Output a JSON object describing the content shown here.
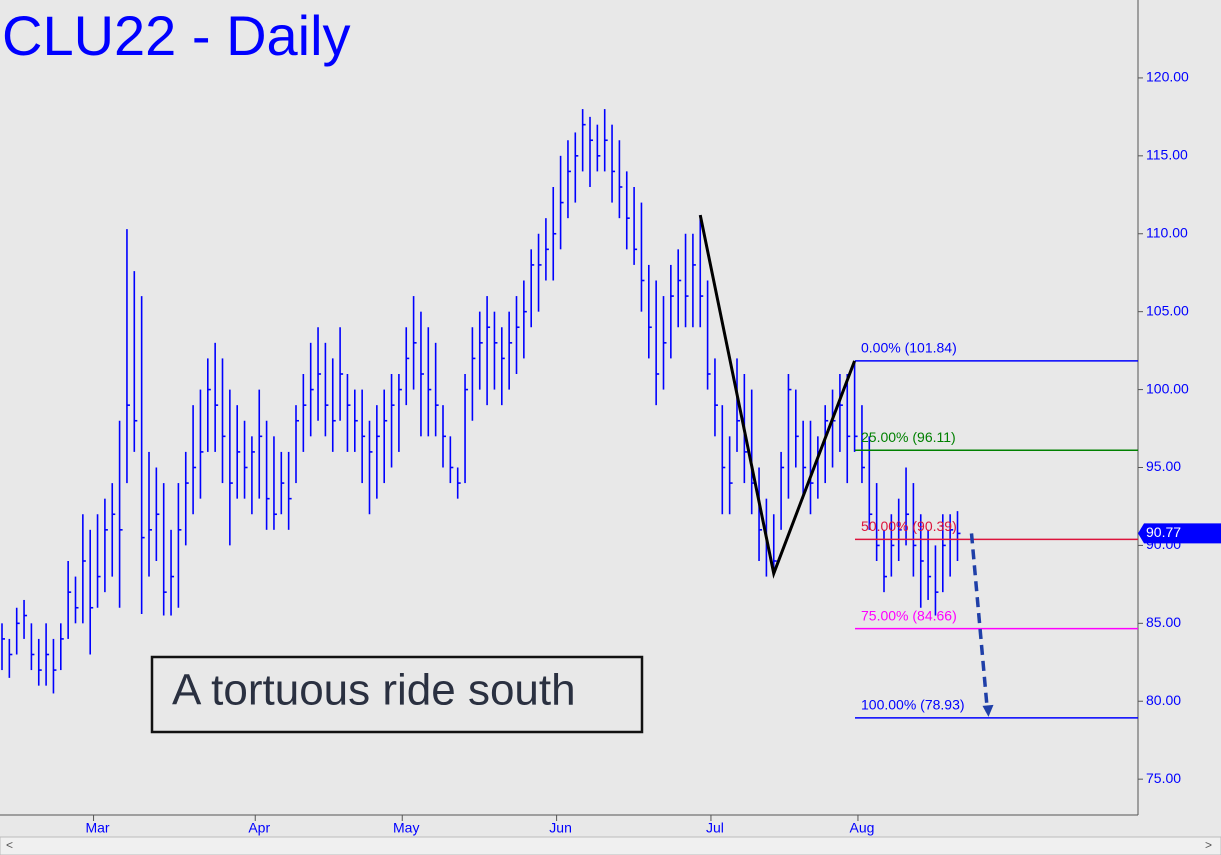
{
  "chart_data": {
    "type": "ohlc",
    "title": "CLU22 - Daily",
    "annotation": "A tortuous ride south",
    "color": "#0000ff",
    "categories": [
      null,
      null,
      null,
      null,
      null,
      null,
      null,
      null,
      null,
      null,
      null,
      null,
      null,
      "Mar",
      null,
      null,
      null,
      null,
      null,
      null,
      null,
      null,
      null,
      null,
      null,
      null,
      null,
      null,
      null,
      null,
      null,
      null,
      null,
      null,
      null,
      "Apr",
      null,
      null,
      null,
      null,
      null,
      null,
      null,
      null,
      null,
      null,
      null,
      null,
      null,
      null,
      null,
      null,
      null,
      null,
      null,
      "May",
      null,
      null,
      null,
      null,
      null,
      null,
      null,
      null,
      null,
      null,
      null,
      null,
      null,
      null,
      null,
      null,
      null,
      null,
      null,
      null,
      "Jun",
      null,
      null,
      null,
      null,
      null,
      null,
      null,
      null,
      null,
      null,
      null,
      null,
      null,
      null,
      null,
      null,
      null,
      null,
      null,
      null,
      "Jul",
      null,
      null,
      null,
      null,
      null,
      null,
      null,
      null,
      null,
      null,
      null,
      null,
      null,
      null,
      null,
      null,
      null,
      null,
      null,
      "Aug",
      null,
      null,
      null,
      null,
      null,
      null,
      null,
      null,
      null,
      null,
      null,
      null,
      null
    ],
    "high": [
      85,
      84,
      86,
      86.5,
      85,
      84,
      85,
      84,
      85,
      89,
      88,
      92,
      91,
      92,
      93,
      94,
      98,
      110.3,
      107.6,
      106,
      96,
      95,
      94,
      91,
      94,
      96,
      99,
      100,
      102,
      103,
      102,
      100,
      99,
      98,
      97,
      100,
      98,
      97,
      96,
      96,
      99,
      101,
      103,
      104,
      103,
      102,
      104,
      101,
      100,
      100,
      98,
      99,
      100,
      101,
      101,
      104,
      106,
      105,
      104,
      103,
      99,
      97,
      95,
      101,
      104,
      105,
      106,
      105,
      104,
      105,
      106,
      107,
      109,
      110,
      111,
      113,
      115,
      116,
      116.5,
      118,
      117.5,
      117,
      118,
      117,
      116,
      114,
      113,
      112,
      108,
      107,
      106,
      108,
      109,
      110,
      110,
      111.2,
      107,
      102,
      99,
      97,
      102,
      101,
      100,
      95,
      93,
      92,
      96,
      101,
      100,
      98,
      98,
      97,
      99,
      100,
      101,
      101,
      101.84,
      99,
      97,
      94,
      91,
      92,
      93,
      95,
      94,
      92,
      91,
      90,
      92,
      92,
      92.2
    ],
    "low": [
      82,
      81.5,
      83,
      84,
      82,
      81,
      81,
      80.5,
      82,
      84,
      85,
      85,
      83,
      86,
      87,
      88,
      86,
      94,
      96,
      85.6,
      88,
      89,
      85.5,
      85.5,
      86,
      90,
      92,
      93,
      96,
      96,
      94,
      90,
      93,
      93,
      92,
      93,
      91,
      91,
      92,
      91,
      94,
      96,
      97,
      98,
      97,
      96,
      98,
      96,
      96,
      94,
      92,
      93,
      94,
      95,
      96,
      99,
      100,
      97,
      97,
      97,
      95,
      94,
      93,
      94,
      98,
      100,
      99,
      100,
      99,
      100,
      101,
      102,
      104,
      105,
      107,
      107,
      109,
      111,
      112,
      114,
      113,
      114,
      114,
      112,
      111,
      109,
      108,
      105,
      102,
      99,
      100,
      102,
      104,
      104,
      104,
      104,
      100,
      97,
      92,
      92,
      96,
      94,
      92,
      89,
      88,
      88.2,
      91,
      93,
      95,
      93,
      92,
      93,
      94,
      95,
      96,
      94,
      96,
      94,
      91,
      89,
      87,
      88,
      89,
      90,
      88,
      86,
      86.5,
      85.5,
      87,
      88,
      89
    ],
    "close": [
      84,
      83,
      85,
      85.5,
      83,
      82,
      83,
      82,
      84,
      87,
      86,
      89,
      86,
      88,
      91,
      92,
      91,
      99,
      98,
      90.5,
      91,
      92,
      87,
      88,
      91,
      94,
      95,
      96,
      100,
      99,
      97,
      94,
      96,
      95,
      96,
      97,
      93,
      92,
      94,
      93,
      98,
      99,
      100,
      101,
      99,
      98,
      101,
      99,
      98,
      97,
      96,
      97,
      98,
      99,
      100,
      102,
      103,
      101,
      100,
      99,
      97,
      95,
      94,
      100,
      102,
      103,
      104,
      103,
      102,
      103,
      104,
      105,
      108,
      108,
      109,
      110,
      112,
      114,
      115,
      117,
      116,
      115,
      116,
      114,
      113,
      111,
      109,
      107,
      104,
      101,
      103,
      106,
      107,
      106,
      108,
      106,
      101,
      99,
      95,
      94,
      98,
      96,
      94,
      91,
      90,
      89,
      95,
      100,
      97,
      95,
      94,
      96,
      98,
      98,
      99,
      97,
      97,
      95,
      92,
      90,
      88,
      90,
      91,
      92,
      90,
      89,
      88,
      87,
      90,
      91,
      90.77
    ],
    "ylim": [
      72.7,
      125
    ],
    "yticks": [
      {
        "value": 75,
        "label": "75.00"
      },
      {
        "value": 80,
        "label": "80.00"
      },
      {
        "value": 85,
        "label": "85.00"
      },
      {
        "value": 90,
        "label": "90.00"
      },
      {
        "value": 95,
        "label": "95.00"
      },
      {
        "value": 100,
        "label": "100.00"
      },
      {
        "value": 105,
        "label": "105.00"
      },
      {
        "value": 110,
        "label": "110.00"
      },
      {
        "value": 115,
        "label": "115.00"
      },
      {
        "value": 120,
        "label": "120.00"
      }
    ],
    "levels": [
      {
        "label": "0.00% (101.84)",
        "value": 101.84,
        "color": "#0000ff"
      },
      {
        "label": "25.00% (96.11)",
        "value": 96.11,
        "color": "#008000"
      },
      {
        "label": "50.00% (90.39)",
        "value": 90.39,
        "color": "#dc143c"
      },
      {
        "label": "75.00% (84.66)",
        "value": 84.66,
        "color": "#ff00ff"
      },
      {
        "label": "100.00% (78.93)",
        "value": 78.93,
        "color": "#0000ff"
      }
    ]
  }
}
